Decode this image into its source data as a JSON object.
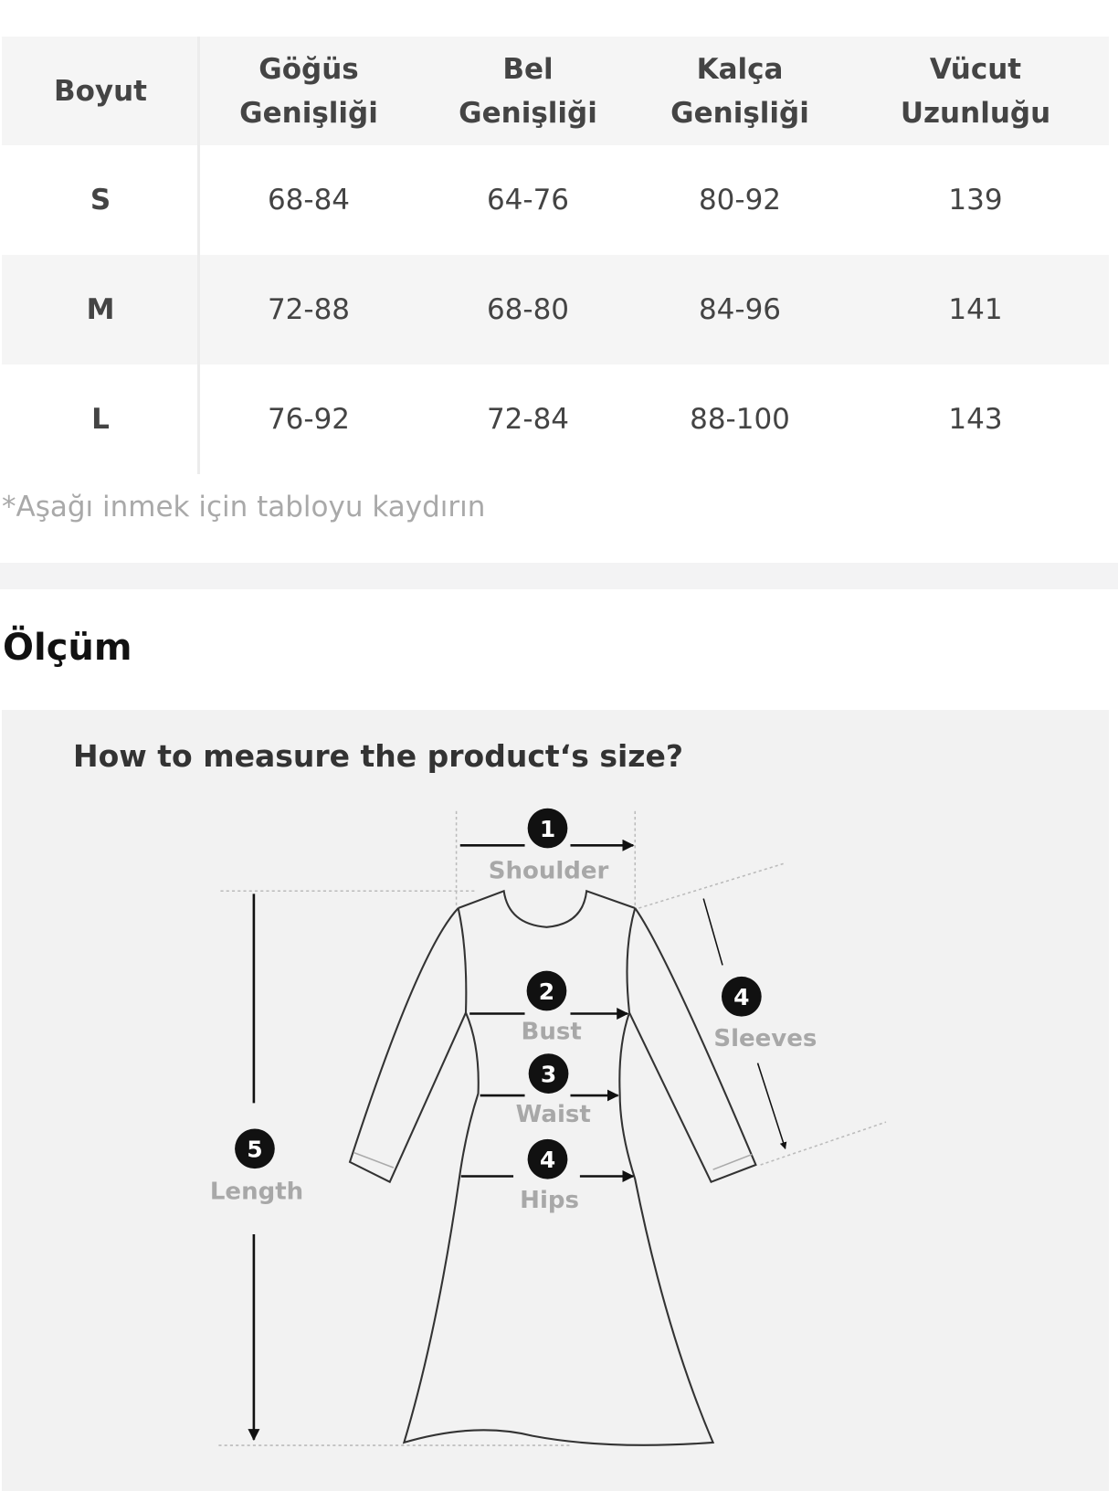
{
  "size_table": {
    "headers": [
      {
        "line1": "Boyut",
        "line2": ""
      },
      {
        "line1": "Göğüs",
        "line2": "Genişliği"
      },
      {
        "line1": "Bel",
        "line2": "Genişliği"
      },
      {
        "line1": "Kalça",
        "line2": "Genişliği"
      },
      {
        "line1": "Vücut",
        "line2": "Uzunluğu"
      }
    ],
    "rows": [
      [
        "S",
        "68-84",
        "64-76",
        "80-92",
        "139"
      ],
      [
        "M",
        "72-88",
        "68-80",
        "84-96",
        "141"
      ],
      [
        "L",
        "76-92",
        "72-84",
        "88-100",
        "143"
      ]
    ],
    "note": "*Aşağı inmek için tabloyu kaydırın"
  },
  "measure": {
    "heading": "Ölçüm",
    "title": "How to measure the product‘s size?",
    "labels": {
      "shoulder": {
        "num": "1",
        "text": "Shoulder"
      },
      "bust": {
        "num": "2",
        "text": "Bust"
      },
      "waist": {
        "num": "3",
        "text": "Waist"
      },
      "hips": {
        "num": "4",
        "text": "Hips"
      },
      "sleeves": {
        "num": "4",
        "text": "Sleeves"
      },
      "length": {
        "num": "5",
        "text": "Length"
      }
    }
  }
}
